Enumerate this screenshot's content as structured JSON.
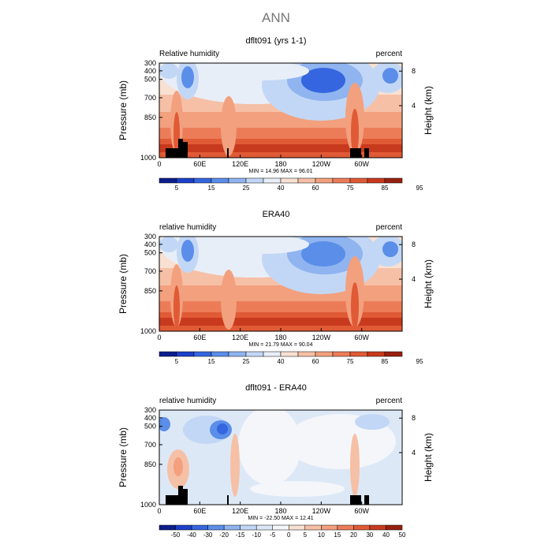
{
  "figure": {
    "title": "ANN"
  },
  "colors": {
    "rh_levels": [
      "#0a1e8c",
      "#1b3fc8",
      "#3566e0",
      "#5a8ee8",
      "#8fb4f0",
      "#c2d7f6",
      "#e8eef8",
      "#f8e0d2",
      "#f6c0a6",
      "#f2a07e",
      "#ec7c58",
      "#e05a36",
      "#c83a1e",
      "#98200f"
    ],
    "diff_levels": [
      "#0a1e8c",
      "#1b3fc8",
      "#3566e0",
      "#5a8ee8",
      "#8fb4f0",
      "#c2d7f6",
      "#dde8f7",
      "#f4f6fa",
      "#f8e0d2",
      "#f6c0a6",
      "#f2a07e",
      "#ec7c58",
      "#e05a36",
      "#c83a1e",
      "#98200f"
    ],
    "land": "#000000"
  },
  "chart_data": [
    {
      "type": "heatmap",
      "title": "dflt091 (yrs 1-1)",
      "field_label": "Relative humidity",
      "units_label": "percent",
      "ylabel": "Pressure (mb)",
      "ylabel_right": "Height (km)",
      "yticks": [
        "300",
        "400",
        "500",
        "700",
        "850",
        "1000"
      ],
      "yticks_right": [
        "8",
        "4"
      ],
      "xticks": [
        "0",
        "60E",
        "120E",
        "180",
        "120W",
        "60W"
      ],
      "stats": "MIN =   14.96    MAX =   96.01",
      "colorbar_labels": [
        "5",
        "15",
        "25",
        "40",
        "60",
        "75",
        "85",
        "95"
      ],
      "colorbar_colors": "rh_levels",
      "land_mask": true
    },
    {
      "type": "heatmap",
      "title": "ERA40",
      "field_label": "relative humidity",
      "units_label": "percent",
      "ylabel": "Pressure (mb)",
      "ylabel_right": "Height (km)",
      "yticks": [
        "300",
        "400",
        "500",
        "700",
        "850",
        "1000"
      ],
      "yticks_right": [
        "8",
        "4"
      ],
      "xticks": [
        "0",
        "60E",
        "120E",
        "180",
        "120W",
        "60W"
      ],
      "stats": "MIN =   21.79    MAX =   90.04",
      "colorbar_labels": [
        "5",
        "15",
        "25",
        "40",
        "60",
        "75",
        "85",
        "95"
      ],
      "colorbar_colors": "rh_levels",
      "land_mask": false
    },
    {
      "type": "heatmap",
      "title": "dflt091 - ERA40",
      "field_label": "relative humidity",
      "units_label": "percent",
      "ylabel": "Pressure (mb)",
      "ylabel_right": "Height (km)",
      "yticks": [
        "300",
        "400",
        "500",
        "700",
        "850",
        "1000"
      ],
      "yticks_right": [
        "8",
        "4"
      ],
      "xticks": [
        "0",
        "60E",
        "120E",
        "180",
        "120W",
        "60W"
      ],
      "stats": "MIN =  -22.50    MAX =   12.41",
      "colorbar_labels": [
        "-50",
        "-40",
        "-30",
        "-20",
        "-15",
        "-10",
        "-5",
        "0",
        "5",
        "10",
        "15",
        "20",
        "30",
        "40",
        "50"
      ],
      "colorbar_colors": "diff_levels",
      "land_mask": true
    }
  ]
}
